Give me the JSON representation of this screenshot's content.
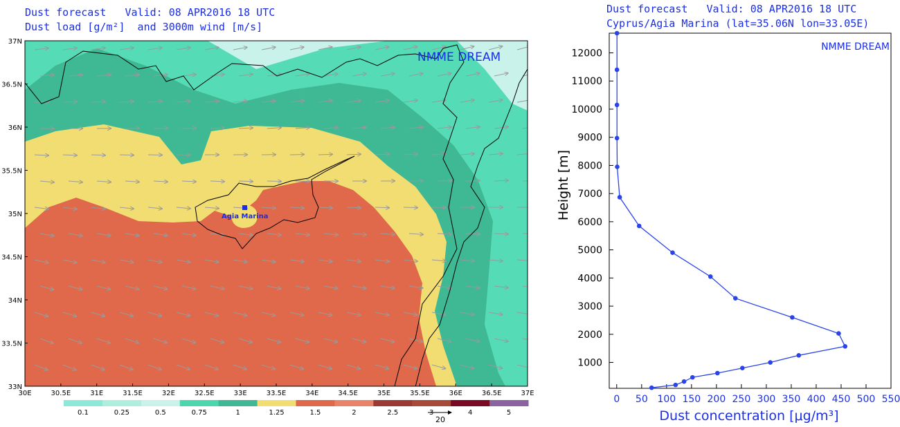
{
  "map_panel": {
    "title_line1": "Dust forecast   Valid: 08 APR2016 18 UTC",
    "title_line2": "Dust load [g/m²]  and 3000m wind [m/s]",
    "brand": "NMME DREAM",
    "station_label": "Agia Marina",
    "lat_labels": [
      "37N",
      "36.5N",
      "36N",
      "35.5N",
      "35N",
      "34.5N",
      "34N",
      "33.5N",
      "33N"
    ],
    "lon_labels": [
      "30E",
      "30.5E",
      "31E",
      "31.5E",
      "32E",
      "32.5E",
      "33E",
      "33.5E",
      "34E",
      "34.5E",
      "35E",
      "35.5E",
      "36E",
      "36.5E",
      "37E"
    ],
    "colorbar": {
      "colors": [
        "#8ee8d8",
        "#aeeedf",
        "#c9f2ea",
        "#4bd6b0",
        "#3fb894",
        "#f2dd72",
        "#e0694c",
        "#e8836a",
        "#9b3a32",
        "#a84a3a",
        "#7a0a24",
        "#8a63a0"
      ],
      "labels": [
        "0.1",
        "0.25",
        "0.5",
        "0.75",
        "1",
        "1.25",
        "1.5",
        "2",
        "2.5",
        "3",
        "4",
        "5"
      ]
    },
    "wind_reference": "20",
    "colors": {
      "title": "#1a2ee6",
      "arrow": "#9a9a9a",
      "border": "#000000"
    }
  },
  "profile_panel": {
    "title_line1": "Dust forecast   Valid: 08 APR2016 18 UTC",
    "title_line2": "Cyprus/Agia Marina (lat=35.06N lon=33.05E)",
    "brand": "NMME DREAM"
  },
  "chart_data": {
    "type": "line",
    "title": "Dust forecast   Valid: 08 APR2016 18 UTC",
    "subtitle": "Cyprus/Agia Marina (lat=35.06N lon=33.05E)",
    "xlabel": "Dust concentration [μg/m³]",
    "ylabel": "Height [m]",
    "xlim": [
      -15,
      550
    ],
    "ylim": [
      80,
      12700
    ],
    "xticks": [
      0,
      50,
      100,
      150,
      200,
      250,
      300,
      350,
      400,
      450,
      500,
      550
    ],
    "yticks": [
      1000,
      2000,
      3000,
      4000,
      5000,
      6000,
      7000,
      8000,
      9000,
      10000,
      11000,
      12000
    ],
    "grid": false,
    "series": [
      {
        "color": "#2a44ea",
        "x": [
          70,
          118,
          135,
          152,
          202,
          252,
          308,
          365,
          458,
          445,
          352,
          238,
          188,
          112,
          45,
          6,
          1,
          0.5,
          0.5,
          0.5,
          0.5
        ],
        "y": [
          100,
          200,
          320,
          470,
          620,
          800,
          1000,
          1250,
          1570,
          2030,
          2600,
          3280,
          4050,
          4900,
          5850,
          6870,
          7950,
          8970,
          10150,
          11400,
          12700
        ]
      }
    ]
  }
}
